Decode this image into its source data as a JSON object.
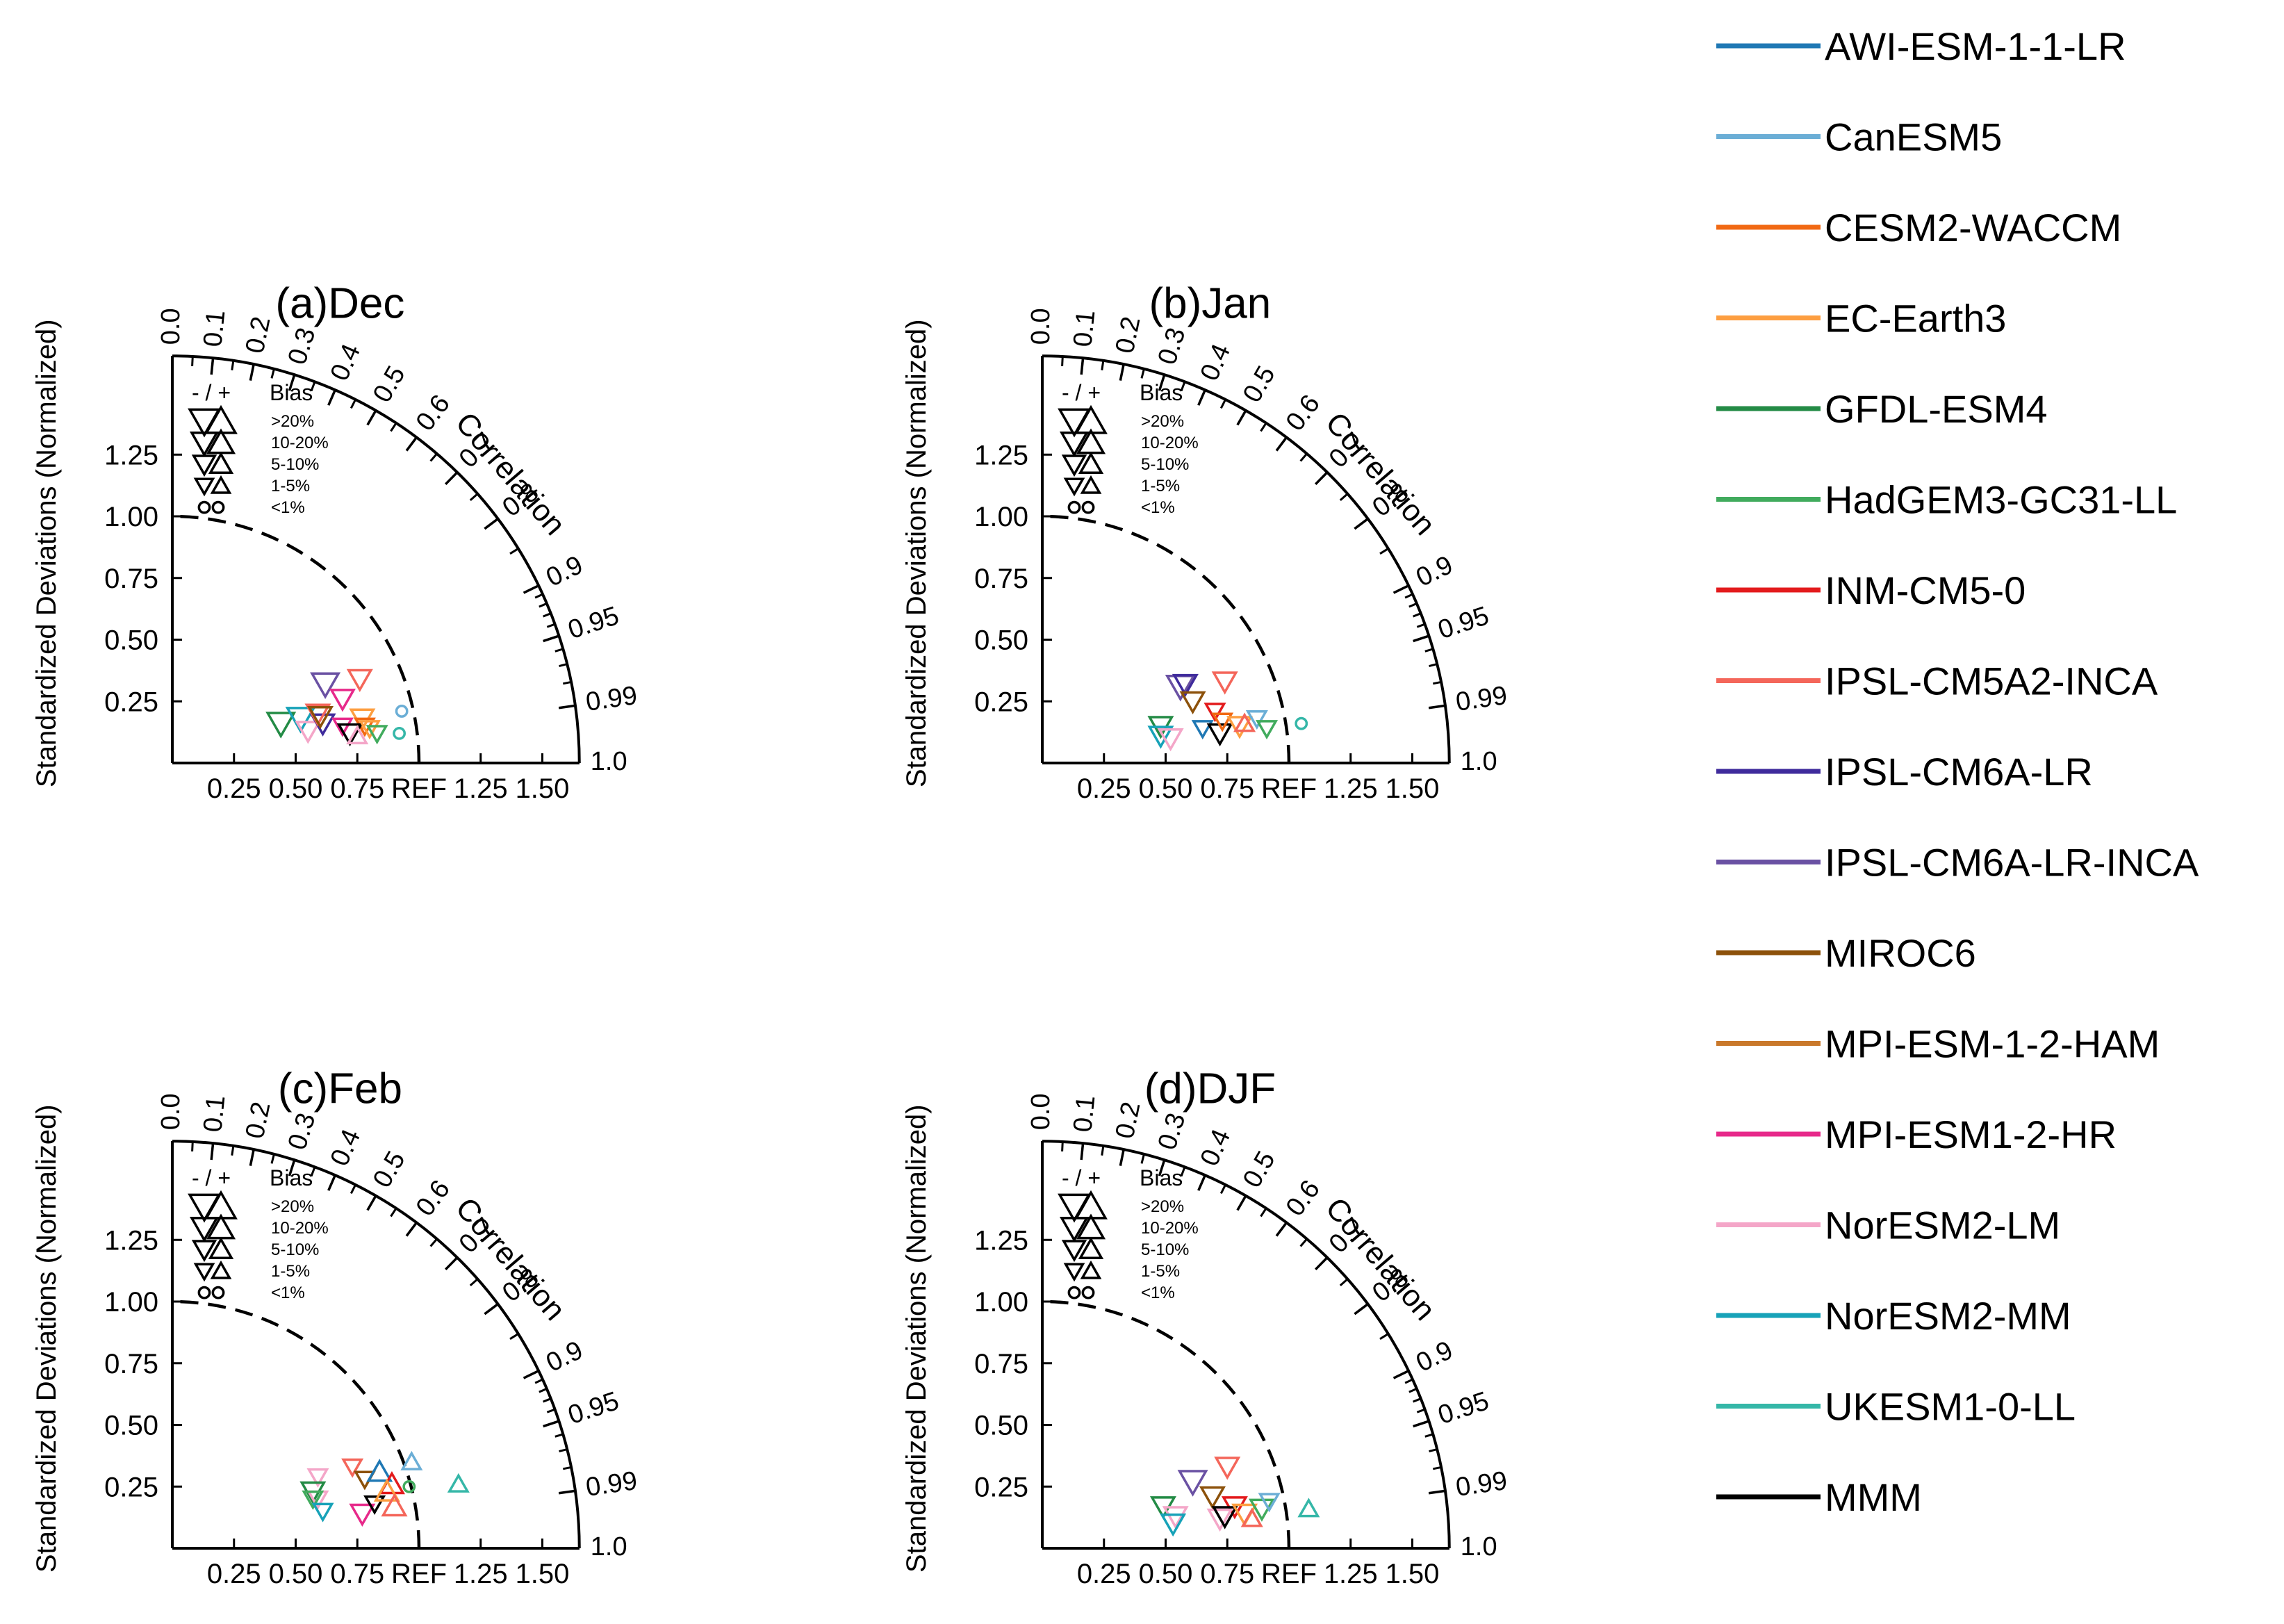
{
  "figure": {
    "y_axis_label": "Standardized Deviations (Normalized)",
    "correlation_label": "Correlation",
    "ref_label": "REF",
    "x_tick_labels": [
      "0.25",
      "0.50",
      "0.75",
      "REF",
      "1.25",
      "1.50"
    ],
    "x_tick_values": [
      0.25,
      0.5,
      0.75,
      1.0,
      1.25,
      1.5
    ],
    "y_tick_labels": [
      "0.25",
      "0.50",
      "0.75",
      "1.00",
      "1.25"
    ],
    "y_tick_values": [
      0.25,
      0.5,
      0.75,
      1.0,
      1.25
    ],
    "corr_tick_labels": [
      "0.0",
      "0.1",
      "0.2",
      "0.3",
      "0.4",
      "0.5",
      "0.6",
      "0.7",
      "0.8",
      "0.9",
      "0.95",
      "0.99",
      "1.0"
    ],
    "corr_tick_values": [
      0.0,
      0.1,
      0.2,
      0.3,
      0.4,
      0.5,
      0.6,
      0.7,
      0.8,
      0.9,
      0.95,
      0.99,
      1.0
    ],
    "bias_legend": {
      "header_signs": "- / +",
      "header_title": "Bias",
      "rows": [
        ">20%",
        "10-20%",
        "5-10%",
        "1-5%",
        "<1%"
      ]
    }
  },
  "legend": [
    {
      "name": "AWI-ESM-1-1-LR",
      "color": "#1f78b4"
    },
    {
      "name": "CanESM5",
      "color": "#6baed6"
    },
    {
      "name": "CESM2-WACCM",
      "color": "#f16913"
    },
    {
      "name": "EC-Earth3",
      "color": "#fd9e40"
    },
    {
      "name": "GFDL-ESM4",
      "color": "#238b45"
    },
    {
      "name": "HadGEM3-GC31-LL",
      "color": "#41ab5d"
    },
    {
      "name": "INM-CM5-0",
      "color": "#e31a1c"
    },
    {
      "name": "IPSL-CM5A2-INCA",
      "color": "#f4665a"
    },
    {
      "name": "IPSL-CM6A-LR",
      "color": "#3f2b9c"
    },
    {
      "name": "IPSL-CM6A-LR-INCA",
      "color": "#6a51a3"
    },
    {
      "name": "MIROC6",
      "color": "#8c510a"
    },
    {
      "name": "MPI-ESM-1-2-HAM",
      "color": "#c9782a"
    },
    {
      "name": "MPI-ESM1-2-HR",
      "color": "#e7298a"
    },
    {
      "name": "NorESM2-LM",
      "color": "#f4a6c8"
    },
    {
      "name": "NorESM2-MM",
      "color": "#17a2b8"
    },
    {
      "name": "UKESM1-0-LL",
      "color": "#35b7a8"
    },
    {
      "name": "MMM",
      "color": "#000000"
    }
  ],
  "chart_data": [
    {
      "type": "scatter",
      "title": "(a)Dec",
      "xlabel": "",
      "ylabel": "Standardized Deviations (Normalized)",
      "xlim": [
        0,
        1.65
      ],
      "ylim": [
        0,
        1.65
      ],
      "points": [
        {
          "model": "GFDL-ESM4",
          "x": 0.44,
          "y": 0.16,
          "marker": "down",
          "bias": "10-20%"
        },
        {
          "model": "NorESM2-MM",
          "x": 0.52,
          "y": 0.18,
          "marker": "down",
          "bias": "10-20%"
        },
        {
          "model": "NorESM2-LM",
          "x": 0.55,
          "y": 0.13,
          "marker": "down",
          "bias": "5-10%"
        },
        {
          "model": "IPSL-CM6A-LR",
          "x": 0.61,
          "y": 0.16,
          "marker": "down",
          "bias": "5-10%"
        },
        {
          "model": "IPSL-CM5A2-INCA",
          "x": 0.59,
          "y": 0.2,
          "marker": "down",
          "bias": "5-10%"
        },
        {
          "model": "MIROC6",
          "x": 0.6,
          "y": 0.19,
          "marker": "down",
          "bias": "5-10%"
        },
        {
          "model": "IPSL-CM6A-LR-INCA",
          "x": 0.62,
          "y": 0.32,
          "marker": "down",
          "bias": "10-20%"
        },
        {
          "model": "MPI-ESM1-2-HR",
          "x": 0.69,
          "y": 0.26,
          "marker": "down",
          "bias": "5-10%"
        },
        {
          "model": "IPSL-CM5A2-INCA",
          "x": 0.76,
          "y": 0.34,
          "marker": "down",
          "bias": "5-10%"
        },
        {
          "model": "MPI-ESM1-2-HR",
          "x": 0.69,
          "y": 0.15,
          "marker": "down",
          "bias": "1-5%"
        },
        {
          "model": "EC-Earth3",
          "x": 0.77,
          "y": 0.18,
          "marker": "down",
          "bias": "5-10%"
        },
        {
          "model": "CESM2-WACCM",
          "x": 0.78,
          "y": 0.15,
          "marker": "down",
          "bias": "1-5%"
        },
        {
          "model": "MMM",
          "x": 0.72,
          "y": 0.12,
          "marker": "down",
          "bias": "5-10%"
        },
        {
          "model": "NorESM2-LM",
          "x": 0.75,
          "y": 0.11,
          "marker": "up",
          "bias": "1-5%"
        },
        {
          "model": "EC-Earth3",
          "x": 0.8,
          "y": 0.14,
          "marker": "down",
          "bias": "1-5%"
        },
        {
          "model": "HadGEM3-GC31-LL",
          "x": 0.83,
          "y": 0.12,
          "marker": "down",
          "bias": "1-5%"
        },
        {
          "model": "CanESM5",
          "x": 0.93,
          "y": 0.21,
          "marker": "circle",
          "bias": "<1%"
        },
        {
          "model": "UKESM1-0-LL",
          "x": 0.92,
          "y": 0.12,
          "marker": "circle",
          "bias": "<1%"
        }
      ]
    },
    {
      "type": "scatter",
      "title": "(b)Jan",
      "xlabel": "",
      "ylabel": "Standardized Deviations (Normalized)",
      "xlim": [
        0,
        1.65
      ],
      "ylim": [
        0,
        1.65
      ],
      "points": [
        {
          "model": "GFDL-ESM4",
          "x": 0.48,
          "y": 0.15,
          "marker": "down",
          "bias": "5-10%"
        },
        {
          "model": "NorESM2-MM",
          "x": 0.48,
          "y": 0.11,
          "marker": "down",
          "bias": "5-10%"
        },
        {
          "model": "NorESM2-LM",
          "x": 0.52,
          "y": 0.1,
          "marker": "down",
          "bias": "5-10%"
        },
        {
          "model": "IPSL-CM6A-LR-INCA",
          "x": 0.56,
          "y": 0.31,
          "marker": "down",
          "bias": "10-20%"
        },
        {
          "model": "IPSL-CM6A-LR",
          "x": 0.58,
          "y": 0.32,
          "marker": "down",
          "bias": "5-10%"
        },
        {
          "model": "MIROC6",
          "x": 0.61,
          "y": 0.25,
          "marker": "down",
          "bias": "5-10%"
        },
        {
          "model": "AWI-ESM-1-1-LR",
          "x": 0.65,
          "y": 0.14,
          "marker": "down",
          "bias": "1-5%"
        },
        {
          "model": "INM-CM5-0",
          "x": 0.7,
          "y": 0.21,
          "marker": "down",
          "bias": "1-5%"
        },
        {
          "model": "IPSL-CM5A2-INCA",
          "x": 0.74,
          "y": 0.33,
          "marker": "down",
          "bias": "5-10%"
        },
        {
          "model": "MMM",
          "x": 0.72,
          "y": 0.12,
          "marker": "down",
          "bias": "5-10%"
        },
        {
          "model": "CESM2-WACCM",
          "x": 0.73,
          "y": 0.17,
          "marker": "down",
          "bias": "1-5%"
        },
        {
          "model": "EC-Earth3",
          "x": 0.8,
          "y": 0.15,
          "marker": "down",
          "bias": "5-10%"
        },
        {
          "model": "CanESM5",
          "x": 0.87,
          "y": 0.18,
          "marker": "down",
          "bias": "1-5%"
        },
        {
          "model": "IPSL-CM5A2-INCA",
          "x": 0.82,
          "y": 0.16,
          "marker": "up",
          "bias": "1-5%"
        },
        {
          "model": "HadGEM3-GC31-LL",
          "x": 0.91,
          "y": 0.14,
          "marker": "down",
          "bias": "1-5%"
        },
        {
          "model": "UKESM1-0-LL",
          "x": 1.05,
          "y": 0.16,
          "marker": "circle",
          "bias": "<1%"
        }
      ]
    },
    {
      "type": "scatter",
      "title": "(c)Feb",
      "xlabel": "",
      "ylabel": "Standardized Deviations (Normalized)",
      "xlim": [
        0,
        1.65
      ],
      "ylim": [
        0,
        1.65
      ],
      "points": [
        {
          "model": "NorESM2-LM",
          "x": 0.59,
          "y": 0.29,
          "marker": "down",
          "bias": "1-5%"
        },
        {
          "model": "GFDL-ESM4",
          "x": 0.57,
          "y": 0.23,
          "marker": "down",
          "bias": "5-10%"
        },
        {
          "model": "NorESM2-LM",
          "x": 0.59,
          "y": 0.2,
          "marker": "down",
          "bias": "1-5%"
        },
        {
          "model": "HadGEM3-GC31-LL",
          "x": 0.57,
          "y": 0.2,
          "marker": "down",
          "bias": "1-5%"
        },
        {
          "model": "NorESM2-MM",
          "x": 0.61,
          "y": 0.15,
          "marker": "down",
          "bias": "1-5%"
        },
        {
          "model": "IPSL-CM5A2-INCA",
          "x": 0.73,
          "y": 0.33,
          "marker": "down",
          "bias": "1-5%"
        },
        {
          "model": "MIROC6",
          "x": 0.78,
          "y": 0.28,
          "marker": "down",
          "bias": "1-5%"
        },
        {
          "model": "MPI-ESM1-2-HR",
          "x": 0.77,
          "y": 0.14,
          "marker": "down",
          "bias": "5-10%"
        },
        {
          "model": "MMM",
          "x": 0.82,
          "y": 0.18,
          "marker": "down",
          "bias": "1-5%"
        },
        {
          "model": "AWI-ESM-1-1-LR",
          "x": 0.84,
          "y": 0.31,
          "marker": "up",
          "bias": "5-10%"
        },
        {
          "model": "INM-CM5-0",
          "x": 0.89,
          "y": 0.26,
          "marker": "up",
          "bias": "5-10%"
        },
        {
          "model": "EC-Earth3",
          "x": 0.87,
          "y": 0.23,
          "marker": "up",
          "bias": "5-10%"
        },
        {
          "model": "IPSL-CM5A2-INCA",
          "x": 0.9,
          "y": 0.17,
          "marker": "up",
          "bias": "5-10%"
        },
        {
          "model": "CanESM5",
          "x": 0.97,
          "y": 0.35,
          "marker": "up",
          "bias": "1-5%"
        },
        {
          "model": "HadGEM3-GC31-LL",
          "x": 0.96,
          "y": 0.25,
          "marker": "circle",
          "bias": "<1%"
        },
        {
          "model": "UKESM1-0-LL",
          "x": 1.16,
          "y": 0.26,
          "marker": "up",
          "bias": "1-5%"
        }
      ]
    },
    {
      "type": "scatter",
      "title": "(d)DJF",
      "xlabel": "",
      "ylabel": "Standardized Deviations (Normalized)",
      "xlim": [
        0,
        1.65
      ],
      "ylim": [
        0,
        1.65
      ],
      "points": [
        {
          "model": "GFDL-ESM4",
          "x": 0.49,
          "y": 0.17,
          "marker": "down",
          "bias": "5-10%"
        },
        {
          "model": "NorESM2-LM",
          "x": 0.54,
          "y": 0.13,
          "marker": "down",
          "bias": "5-10%"
        },
        {
          "model": "NorESM2-MM",
          "x": 0.53,
          "y": 0.1,
          "marker": "down",
          "bias": "5-10%"
        },
        {
          "model": "IPSL-CM6A-LR-INCA",
          "x": 0.61,
          "y": 0.27,
          "marker": "down",
          "bias": "10-20%"
        },
        {
          "model": "MIROC6",
          "x": 0.69,
          "y": 0.21,
          "marker": "down",
          "bias": "5-10%"
        },
        {
          "model": "IPSL-CM5A2-INCA",
          "x": 0.75,
          "y": 0.33,
          "marker": "down",
          "bias": "5-10%"
        },
        {
          "model": "INM-CM5-0",
          "x": 0.78,
          "y": 0.17,
          "marker": "down",
          "bias": "5-10%"
        },
        {
          "model": "NorESM2-LM",
          "x": 0.72,
          "y": 0.12,
          "marker": "down",
          "bias": "5-10%"
        },
        {
          "model": "MMM",
          "x": 0.74,
          "y": 0.13,
          "marker": "down",
          "bias": "5-10%"
        },
        {
          "model": "EC-Earth3",
          "x": 0.82,
          "y": 0.14,
          "marker": "down",
          "bias": "5-10%"
        },
        {
          "model": "IPSL-CM5A2-INCA",
          "x": 0.85,
          "y": 0.12,
          "marker": "up",
          "bias": "1-5%"
        },
        {
          "model": "HadGEM3-GC31-LL",
          "x": 0.89,
          "y": 0.16,
          "marker": "down",
          "bias": "5-10%"
        },
        {
          "model": "CanESM5",
          "x": 0.92,
          "y": 0.19,
          "marker": "down",
          "bias": "1-5%"
        },
        {
          "model": "UKESM1-0-LL",
          "x": 1.08,
          "y": 0.16,
          "marker": "up",
          "bias": "1-5%"
        }
      ]
    }
  ]
}
